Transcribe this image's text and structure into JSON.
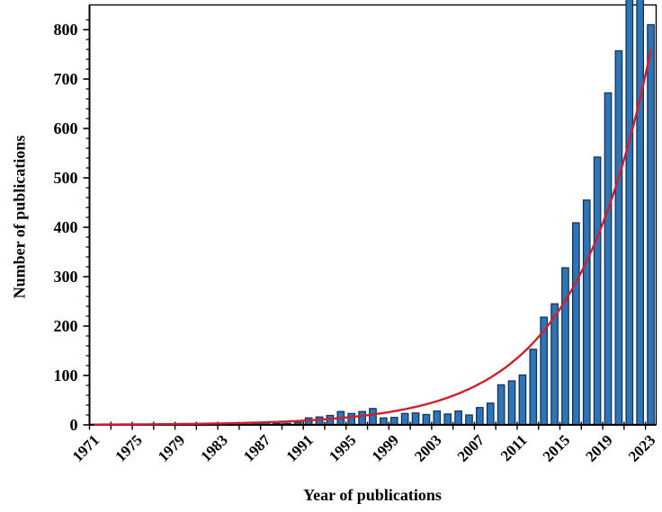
{
  "figure": {
    "background": "#ffffff",
    "border_color": "#000000"
  },
  "chart_data": {
    "type": "bar",
    "title": "",
    "xlabel": "Year of publications",
    "ylabel": "Number of publications",
    "categories": [
      1971,
      1972,
      1973,
      1974,
      1975,
      1976,
      1977,
      1978,
      1979,
      1980,
      1981,
      1982,
      1983,
      1984,
      1985,
      1986,
      1987,
      1988,
      1989,
      1990,
      1991,
      1992,
      1993,
      1994,
      1995,
      1996,
      1997,
      1998,
      1999,
      2000,
      2001,
      2002,
      2003,
      2004,
      2005,
      2006,
      2007,
      2008,
      2009,
      2010,
      2011,
      2012,
      2013,
      2014,
      2015,
      2016,
      2017,
      2018,
      2019,
      2020,
      2021,
      2022,
      2023
    ],
    "values": [
      1,
      0,
      1,
      0,
      1,
      1,
      0,
      1,
      2,
      1,
      1,
      2,
      1,
      2,
      2,
      2,
      2,
      3,
      3,
      5,
      14,
      16,
      19,
      27,
      23,
      27,
      33,
      14,
      15,
      23,
      24,
      21,
      28,
      22,
      28,
      20,
      35,
      44,
      81,
      89,
      101,
      153,
      218,
      245,
      318,
      409,
      455,
      542,
      672,
      757,
      875,
      905,
      810
    ],
    "x_tick_labels": [
      "1971",
      "1975",
      "1979",
      "1983",
      "1987",
      "1991",
      "1995",
      "1999",
      "2003",
      "2007",
      "2011",
      "2015",
      "2019",
      "2023"
    ],
    "x_label_every_years": 4,
    "x_minor_tick_every_years": 2,
    "y_tick_labels": [
      "0",
      "100",
      "200",
      "300",
      "400",
      "500",
      "600",
      "700",
      "800"
    ],
    "ylim": [
      0,
      850
    ],
    "y_major_tick": 100,
    "y_minor_tick": 20,
    "grid": "off",
    "legend": "none",
    "bar_fill": "#2e75b6",
    "bar_stroke": "#14335c",
    "axis_color": "#000000",
    "tick_label_color": "#000000",
    "trend": {
      "type": "exponential",
      "color": "#d21f2e",
      "a": 0.58,
      "b": 0.138,
      "x_start_year": 1971,
      "x_end_year": 2023
    }
  }
}
